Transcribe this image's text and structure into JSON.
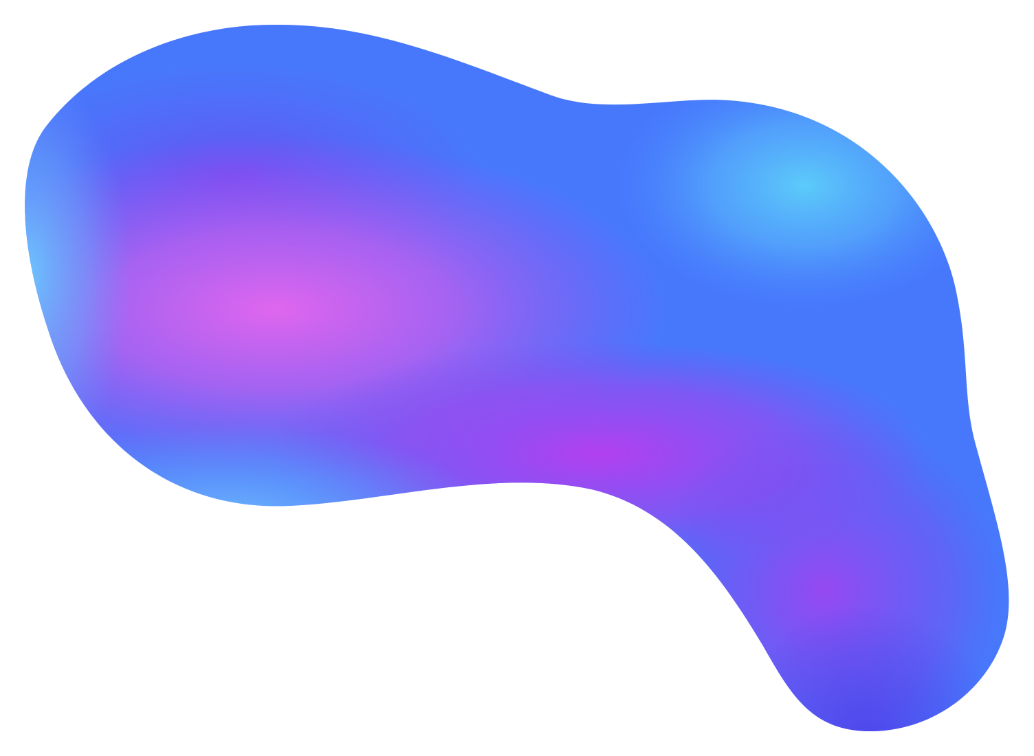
{
  "illustration": {
    "subject": "gradient-blob",
    "background_color": "#ffffff",
    "colors": {
      "deep_blue": "#4a5ff0",
      "blue": "#4778fc",
      "violet": "#6a54f2",
      "purple": "#a944ee",
      "magenta": "#d966ee",
      "sky_blue": "#5cc9fa",
      "light_cyan": "#6ab8fd",
      "indigo_shadow": "#4d3fe8"
    }
  }
}
